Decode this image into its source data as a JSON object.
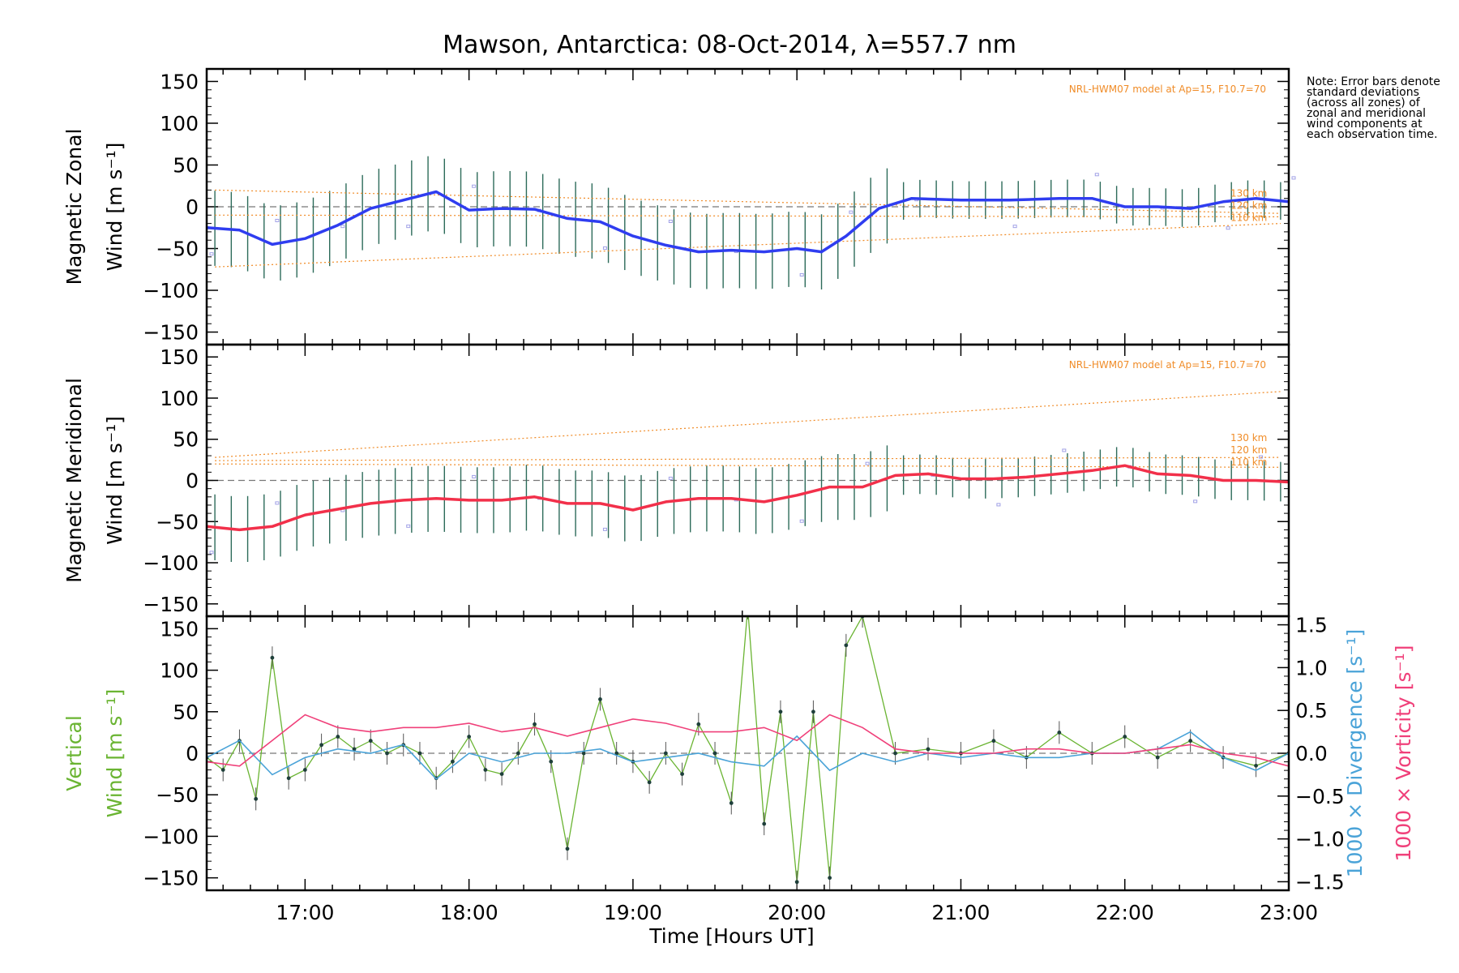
{
  "title": "Mawson, Antarctica: 08-Oct-2014, λ=557.7 nm",
  "note": "Note: Error bars denote standard deviations (across all zones) of zonal and meridional wind components at each observation time.",
  "xlabel": "Time [Hours UT]",
  "xticks": [
    "17:00",
    "18:00",
    "19:00",
    "20:00",
    "21:00",
    "22:00",
    "23:00"
  ],
  "colors": {
    "zonal_mean": "#2f3df0",
    "meridional_mean": "#f2304a",
    "vertical": "#6ab432",
    "divergence": "#4aa3d8",
    "vorticity": "#f0407a",
    "model": "#f08c28",
    "errorbar": "#2d6b5a",
    "zone_points": "#a0a0e6"
  },
  "chart_data": [
    {
      "type": "line",
      "id": "zonal",
      "ylabel_line1": "Magnetic Zonal",
      "ylabel_line2": "Wind [m s⁻¹]",
      "ylim": [
        -165,
        165
      ],
      "yticks": [
        "150",
        "100",
        "50",
        "0",
        "−50",
        "−100",
        "−150"
      ],
      "xlim": [
        16.4,
        23.0
      ],
      "model_label": "NRL-HWM07 model at Ap=15, F10.7=70",
      "model_heights": [
        "130 km",
        "120 km",
        "110 km"
      ],
      "model_lines": [
        {
          "name": "130 km",
          "x": [
            16.45,
            22.95
          ],
          "y": [
            20,
            -8
          ]
        },
        {
          "name": "120 km",
          "x": [
            16.45,
            22.95
          ],
          "y": [
            -10,
            -12
          ]
        },
        {
          "name": "110 km",
          "x": [
            16.45,
            22.95
          ],
          "y": [
            -72,
            -20
          ]
        }
      ],
      "mean": {
        "x": [
          16.4,
          16.6,
          16.8,
          17.0,
          17.2,
          17.4,
          17.6,
          17.8,
          18.0,
          18.2,
          18.4,
          18.6,
          18.8,
          19.0,
          19.2,
          19.4,
          19.6,
          19.8,
          20.0,
          20.15,
          20.3,
          20.5,
          20.7,
          21.0,
          21.3,
          21.6,
          21.8,
          22.0,
          22.2,
          22.4,
          22.6,
          22.8,
          23.0
        ],
        "y": [
          -25,
          -28,
          -45,
          -38,
          -22,
          -2,
          8,
          18,
          -4,
          -2,
          -3,
          -14,
          -18,
          -35,
          -46,
          -54,
          -52,
          -54,
          -50,
          -54,
          -35,
          -2,
          10,
          8,
          8,
          10,
          10,
          0,
          0,
          -2,
          6,
          10,
          6
        ]
      },
      "errorbar_sd": 45
    },
    {
      "type": "line",
      "id": "meridional",
      "ylabel_line1": "Magnetic Meridional",
      "ylabel_line2": "Wind [m s⁻¹]",
      "ylim": [
        -165,
        165
      ],
      "yticks": [
        "150",
        "100",
        "50",
        "0",
        "−50",
        "−100",
        "−150"
      ],
      "xlim": [
        16.4,
        23.0
      ],
      "model_label": "NRL-HWM07 model at Ap=15, F10.7=70",
      "model_heights": [
        "130 km",
        "120 km",
        "110 km"
      ],
      "model_lines": [
        {
          "name": "130 km",
          "x": [
            16.45,
            22.95
          ],
          "y": [
            28,
            108
          ]
        },
        {
          "name": "120 km",
          "x": [
            16.45,
            22.95
          ],
          "y": [
            24,
            28
          ]
        },
        {
          "name": "110 km",
          "x": [
            16.45,
            22.95
          ],
          "y": [
            20,
            16
          ]
        }
      ],
      "mean": {
        "x": [
          16.4,
          16.6,
          16.8,
          17.0,
          17.2,
          17.4,
          17.6,
          17.8,
          18.0,
          18.2,
          18.4,
          18.6,
          18.8,
          19.0,
          19.2,
          19.4,
          19.6,
          19.8,
          20.0,
          20.2,
          20.4,
          20.6,
          20.8,
          21.0,
          21.2,
          21.4,
          21.6,
          21.8,
          22.0,
          22.2,
          22.4,
          22.6,
          22.8,
          23.0
        ],
        "y": [
          -56,
          -60,
          -56,
          -42,
          -35,
          -28,
          -24,
          -22,
          -24,
          -24,
          -20,
          -28,
          -28,
          -36,
          -26,
          -22,
          -22,
          -26,
          -18,
          -8,
          -8,
          6,
          8,
          2,
          2,
          4,
          8,
          12,
          18,
          8,
          6,
          0,
          0,
          -2
        ]
      },
      "errorbar_sd": 40
    },
    {
      "type": "line",
      "id": "vertical",
      "ylabel_line1": "Vertical",
      "ylabel_line2": "Wind [m s⁻¹]",
      "ylim": [
        -165,
        165
      ],
      "yticks": [
        "150",
        "100",
        "50",
        "0",
        "−50",
        "−100",
        "−150"
      ],
      "y2label_divergence": "1000 × Divergence [s⁻¹]",
      "y2label_vorticity": "1000 × Vorticity [s⁻¹]",
      "y2lim": [
        -1.6,
        1.6
      ],
      "y2ticks": [
        "1.5",
        "1.0",
        "0.5",
        "0.0",
        "−0.5",
        "−1.0",
        "−1.5"
      ],
      "xlim": [
        16.4,
        23.0
      ],
      "series": [
        {
          "name": "Vertical Wind",
          "axis": "left",
          "x": [
            16.4,
            16.5,
            16.6,
            16.7,
            16.8,
            16.9,
            17.0,
            17.1,
            17.2,
            17.3,
            17.4,
            17.5,
            17.6,
            17.7,
            17.8,
            17.9,
            18.0,
            18.1,
            18.2,
            18.3,
            18.4,
            18.5,
            18.6,
            18.7,
            18.8,
            18.9,
            19.0,
            19.1,
            19.2,
            19.3,
            19.4,
            19.5,
            19.6,
            19.7,
            19.8,
            19.9,
            20.0,
            20.1,
            20.2,
            20.3,
            20.4,
            20.6,
            20.8,
            21.0,
            21.2,
            21.4,
            21.6,
            21.8,
            22.0,
            22.2,
            22.4,
            22.6,
            22.8,
            23.0
          ],
          "y": [
            -5,
            -20,
            15,
            -55,
            115,
            -30,
            -20,
            10,
            20,
            5,
            15,
            0,
            10,
            0,
            -30,
            -10,
            20,
            -20,
            -25,
            0,
            35,
            -10,
            -115,
            0,
            65,
            0,
            -10,
            -35,
            0,
            -25,
            35,
            0,
            -60,
            175,
            -85,
            50,
            -155,
            50,
            -150,
            130,
            165,
            0,
            5,
            0,
            15,
            -5,
            25,
            0,
            20,
            -5,
            15,
            -5,
            -15,
            0
          ]
        },
        {
          "name": "Divergence",
          "axis": "right",
          "x": [
            16.4,
            16.6,
            16.8,
            17.0,
            17.2,
            17.4,
            17.6,
            17.8,
            18.0,
            18.2,
            18.4,
            18.6,
            18.8,
            19.0,
            19.2,
            19.4,
            19.6,
            19.8,
            20.0,
            20.2,
            20.4,
            20.6,
            20.8,
            21.0,
            21.2,
            21.4,
            21.6,
            21.8,
            22.0,
            22.2,
            22.4,
            22.6,
            22.8,
            23.0
          ],
          "y": [
            -0.05,
            0.15,
            -0.25,
            -0.05,
            0.05,
            0.0,
            0.1,
            -0.3,
            0.0,
            -0.1,
            0.0,
            0.0,
            0.05,
            -0.1,
            -0.05,
            0.0,
            -0.1,
            -0.15,
            0.2,
            -0.2,
            0.0,
            -0.1,
            0.0,
            -0.05,
            0.0,
            -0.05,
            -0.05,
            0.0,
            0.0,
            0.05,
            0.25,
            -0.05,
            -0.2,
            0.0
          ]
        },
        {
          "name": "Vorticity",
          "axis": "right",
          "x": [
            16.4,
            16.6,
            16.8,
            17.0,
            17.2,
            17.4,
            17.6,
            17.8,
            18.0,
            18.2,
            18.4,
            18.6,
            18.8,
            19.0,
            19.2,
            19.4,
            19.6,
            19.8,
            20.0,
            20.2,
            20.4,
            20.6,
            20.8,
            21.0,
            21.2,
            21.4,
            21.6,
            21.8,
            22.0,
            22.2,
            22.4,
            22.6,
            22.8,
            23.0
          ],
          "y": [
            -0.1,
            -0.15,
            0.15,
            0.45,
            0.3,
            0.25,
            0.3,
            0.3,
            0.35,
            0.25,
            0.3,
            0.2,
            0.3,
            0.4,
            0.35,
            0.25,
            0.25,
            0.3,
            0.15,
            0.45,
            0.3,
            0.05,
            0.0,
            0.0,
            0.0,
            0.05,
            0.05,
            0.0,
            0.0,
            0.05,
            0.1,
            0.0,
            -0.05,
            -0.15
          ]
        }
      ]
    }
  ]
}
